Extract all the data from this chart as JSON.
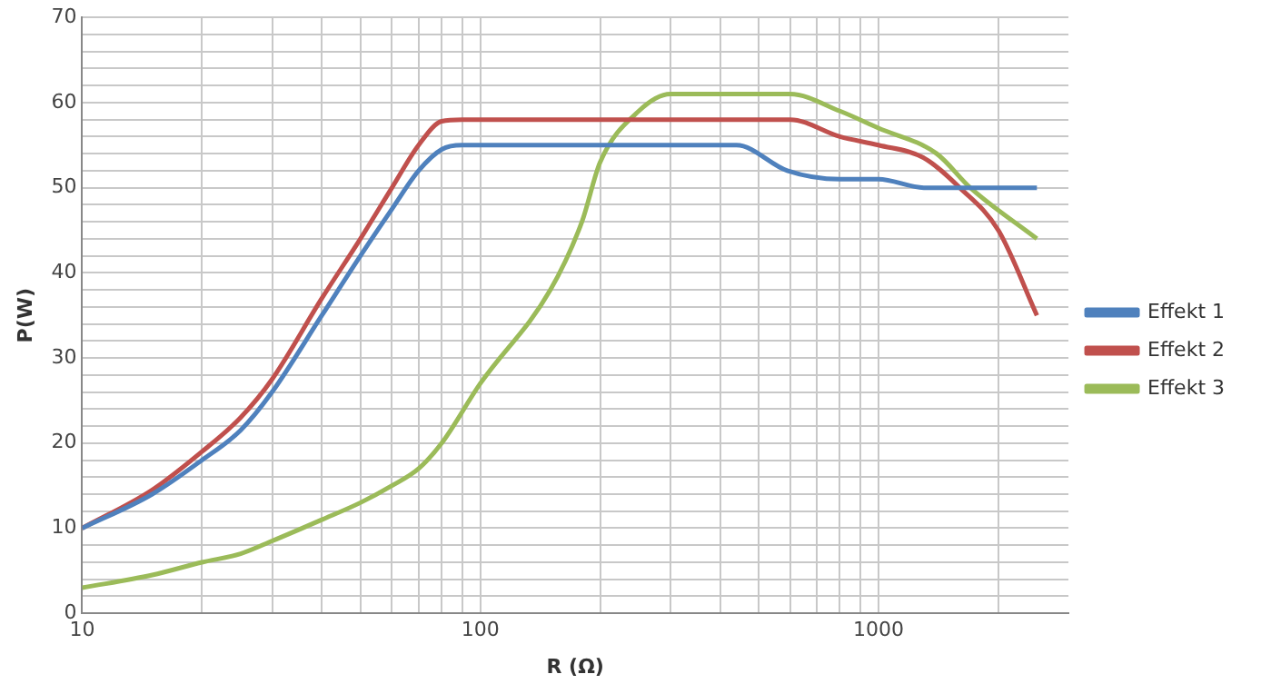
{
  "chart_data": {
    "type": "line",
    "xlabel": "R (Ω)",
    "ylabel": "P(W)",
    "log": "x",
    "grid": true,
    "legend": "right",
    "marker": "none",
    "line_style": "solid",
    "xlim": [
      10,
      3000
    ],
    "ylim": [
      0,
      70
    ],
    "xticks": [
      10,
      {
        "value": 20,
        "label": null
      },
      {
        "value": 30,
        "label": null
      },
      {
        "value": 40,
        "label": null
      },
      {
        "value": 50,
        "label": null
      },
      {
        "value": 60,
        "label": null
      },
      {
        "value": 70,
        "label": null
      },
      {
        "value": 80,
        "label": null
      },
      {
        "value": 90,
        "label": null
      },
      100,
      {
        "value": 200,
        "label": null
      },
      {
        "value": 300,
        "label": null
      },
      {
        "value": 400,
        "label": null
      },
      {
        "value": 500,
        "label": null
      },
      {
        "value": 600,
        "label": null
      },
      {
        "value": 700,
        "label": null
      },
      {
        "value": 800,
        "label": null
      },
      {
        "value": 900,
        "label": null
      },
      1000,
      {
        "value": 2000,
        "label": null
      }
    ],
    "yticks": [
      0,
      {
        "value": 2,
        "label": null
      },
      {
        "value": 4,
        "label": null
      },
      {
        "value": 6,
        "label": null
      },
      {
        "value": 8,
        "label": null
      },
      10,
      {
        "value": 12,
        "label": null
      },
      {
        "value": 14,
        "label": null
      },
      {
        "value": 16,
        "label": null
      },
      {
        "value": 18,
        "label": null
      },
      20,
      {
        "value": 22,
        "label": null
      },
      {
        "value": 24,
        "label": null
      },
      {
        "value": 26,
        "label": null
      },
      {
        "value": 28,
        "label": null
      },
      30,
      {
        "value": 32,
        "label": null
      },
      {
        "value": 34,
        "label": null
      },
      {
        "value": 36,
        "label": null
      },
      {
        "value": 38,
        "label": null
      },
      40,
      {
        "value": 42,
        "label": null
      },
      {
        "value": 44,
        "label": null
      },
      {
        "value": 46,
        "label": null
      },
      {
        "value": 48,
        "label": null
      },
      50,
      {
        "value": 52,
        "label": null
      },
      {
        "value": 54,
        "label": null
      },
      {
        "value": 56,
        "label": null
      },
      {
        "value": 58,
        "label": null
      },
      60,
      {
        "value": 62,
        "label": null
      },
      {
        "value": 64,
        "label": null
      },
      {
        "value": 66,
        "label": null
      },
      {
        "value": 68,
        "label": null
      },
      70
    ],
    "series": [
      {
        "name": "Effekt 1",
        "color": "#4f81bd",
        "x": [
          10,
          15,
          20,
          25,
          30,
          40,
          50,
          60,
          70,
          80,
          90,
          100,
          200,
          300,
          440,
          590,
          800,
          1000,
          1300,
          2500
        ],
        "values": [
          10,
          14,
          18,
          21.5,
          26,
          35,
          42,
          47.5,
          52,
          54.5,
          55,
          55,
          55,
          55,
          55,
          52,
          51,
          51,
          50,
          50
        ]
      },
      {
        "name": "Effekt 2",
        "color": "#c0504d",
        "x": [
          10,
          15,
          20,
          25,
          30,
          40,
          50,
          60,
          70,
          80,
          90,
          100,
          200,
          300,
          600,
          800,
          1000,
          1300,
          1600,
          2000,
          2500
        ],
        "values": [
          10,
          14.5,
          19,
          23,
          27.5,
          37,
          44,
          50,
          55,
          57.8,
          58,
          58,
          58,
          58,
          58,
          56,
          55,
          53.5,
          50,
          45,
          35
        ]
      },
      {
        "name": "Effekt 3",
        "color": "#9bbb59",
        "x": [
          10,
          15,
          20,
          25,
          30,
          40,
          50,
          60,
          70,
          80,
          100,
          150,
          180,
          200,
          250,
          300,
          600,
          800,
          1000,
          1400,
          1700,
          2500
        ],
        "values": [
          3,
          4.5,
          6,
          7,
          8.5,
          11,
          13,
          15,
          17,
          20,
          27,
          38,
          46,
          53,
          59,
          61,
          61,
          59,
          57,
          54,
          50,
          44
        ]
      }
    ]
  }
}
